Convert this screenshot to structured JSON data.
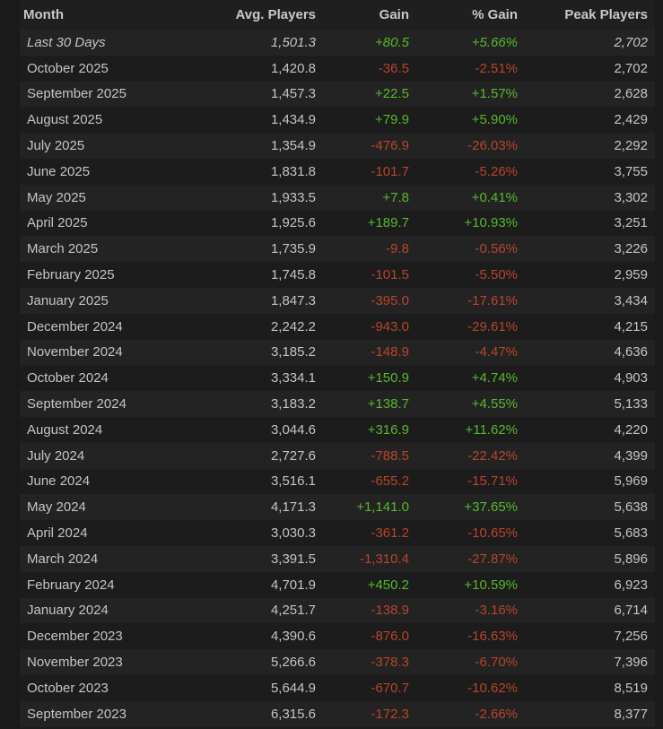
{
  "colors": {
    "positive": "#57b82c",
    "negative": "#b8452a",
    "text": "#c4c4c4"
  },
  "headers": [
    "Month",
    "Avg. Players",
    "Gain",
    "% Gain",
    "Peak Players"
  ],
  "rows": [
    [
      "Last 30 Days",
      "1,501.3",
      "+80.5",
      "+5.66%",
      "2,702"
    ],
    [
      "October 2025",
      "1,420.8",
      "-36.5",
      "-2.51%",
      "2,702"
    ],
    [
      "September 2025",
      "1,457.3",
      "+22.5",
      "+1.57%",
      "2,628"
    ],
    [
      "August 2025",
      "1,434.9",
      "+79.9",
      "+5.90%",
      "2,429"
    ],
    [
      "July 2025",
      "1,354.9",
      "-476.9",
      "-26.03%",
      "2,292"
    ],
    [
      "June 2025",
      "1,831.8",
      "-101.7",
      "-5.26%",
      "3,755"
    ],
    [
      "May 2025",
      "1,933.5",
      "+7.8",
      "+0.41%",
      "3,302"
    ],
    [
      "April 2025",
      "1,925.6",
      "+189.7",
      "+10.93%",
      "3,251"
    ],
    [
      "March 2025",
      "1,735.9",
      "-9.8",
      "-0.56%",
      "3,226"
    ],
    [
      "February 2025",
      "1,745.8",
      "-101.5",
      "-5.50%",
      "2,959"
    ],
    [
      "January 2025",
      "1,847.3",
      "-395.0",
      "-17.61%",
      "3,434"
    ],
    [
      "December 2024",
      "2,242.2",
      "-943.0",
      "-29.61%",
      "4,215"
    ],
    [
      "November 2024",
      "3,185.2",
      "-148.9",
      "-4.47%",
      "4,636"
    ],
    [
      "October 2024",
      "3,334.1",
      "+150.9",
      "+4.74%",
      "4,903"
    ],
    [
      "September 2024",
      "3,183.2",
      "+138.7",
      "+4.55%",
      "5,133"
    ],
    [
      "August 2024",
      "3,044.6",
      "+316.9",
      "+11.62%",
      "4,220"
    ],
    [
      "July 2024",
      "2,727.6",
      "-788.5",
      "-22.42%",
      "4,399"
    ],
    [
      "June 2024",
      "3,516.1",
      "-655.2",
      "-15.71%",
      "5,969"
    ],
    [
      "May 2024",
      "4,171.3",
      "+1,141.0",
      "+37.65%",
      "5,638"
    ],
    [
      "April 2024",
      "3,030.3",
      "-361.2",
      "-10.65%",
      "5,683"
    ],
    [
      "March 2024",
      "3,391.5",
      "-1,310.4",
      "-27.87%",
      "5,896"
    ],
    [
      "February 2024",
      "4,701.9",
      "+450.2",
      "+10.59%",
      "6,923"
    ],
    [
      "January 2024",
      "4,251.7",
      "-138.9",
      "-3.16%",
      "6,714"
    ],
    [
      "December 2023",
      "4,390.6",
      "-876.0",
      "-16.63%",
      "7,256"
    ],
    [
      "November 2023",
      "5,266.6",
      "-378.3",
      "-6.70%",
      "7,396"
    ],
    [
      "October 2023",
      "5,644.9",
      "-670.7",
      "-10.62%",
      "8,519"
    ],
    [
      "September 2023",
      "6,315.6",
      "-172.3",
      "-2.66%",
      "8,377"
    ]
  ]
}
